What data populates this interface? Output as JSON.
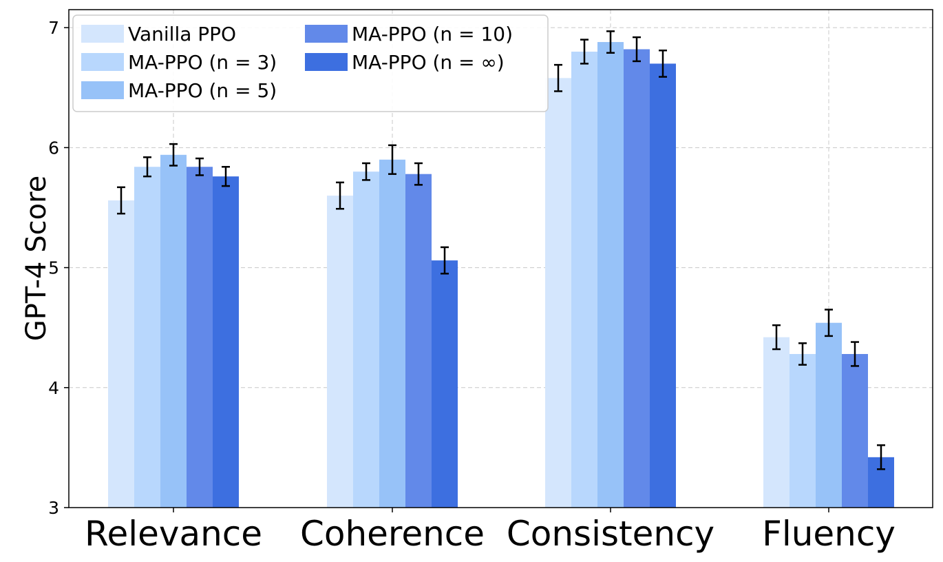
{
  "chart_data": {
    "type": "bar",
    "title": "",
    "xlabel": "",
    "ylabel": "GPT-4 Score",
    "ylim": [
      3,
      7.15
    ],
    "yticks": [
      3,
      4,
      5,
      6,
      7
    ],
    "grid": true,
    "legend_position": "top-left",
    "categories": [
      "Relevance",
      "Coherence",
      "Consistency",
      "Fluency"
    ],
    "series": [
      {
        "name": "Vanilla PPO",
        "color": "#d4e6fd",
        "values": [
          5.56,
          5.6,
          6.58,
          4.42
        ],
        "errors": [
          0.11,
          0.11,
          0.11,
          0.1
        ]
      },
      {
        "name": "MA-PPO (n = 3)",
        "color": "#b8d7fd",
        "values": [
          5.84,
          5.8,
          6.8,
          4.28
        ],
        "errors": [
          0.08,
          0.07,
          0.1,
          0.09
        ]
      },
      {
        "name": "MA-PPO (n = 5)",
        "color": "#97c2f8",
        "values": [
          5.94,
          5.9,
          6.88,
          4.54
        ],
        "errors": [
          0.09,
          0.12,
          0.09,
          0.11
        ]
      },
      {
        "name": "MA-PPO (n = 10)",
        "color": "#6289e9",
        "values": [
          5.84,
          5.78,
          6.82,
          4.28
        ],
        "errors": [
          0.07,
          0.09,
          0.1,
          0.1
        ]
      },
      {
        "name": "MA-PPO (n = ∞)",
        "color": "#3d6fe0",
        "values": [
          5.76,
          5.06,
          6.7,
          3.42
        ],
        "errors": [
          0.08,
          0.11,
          0.11,
          0.1
        ]
      }
    ]
  }
}
